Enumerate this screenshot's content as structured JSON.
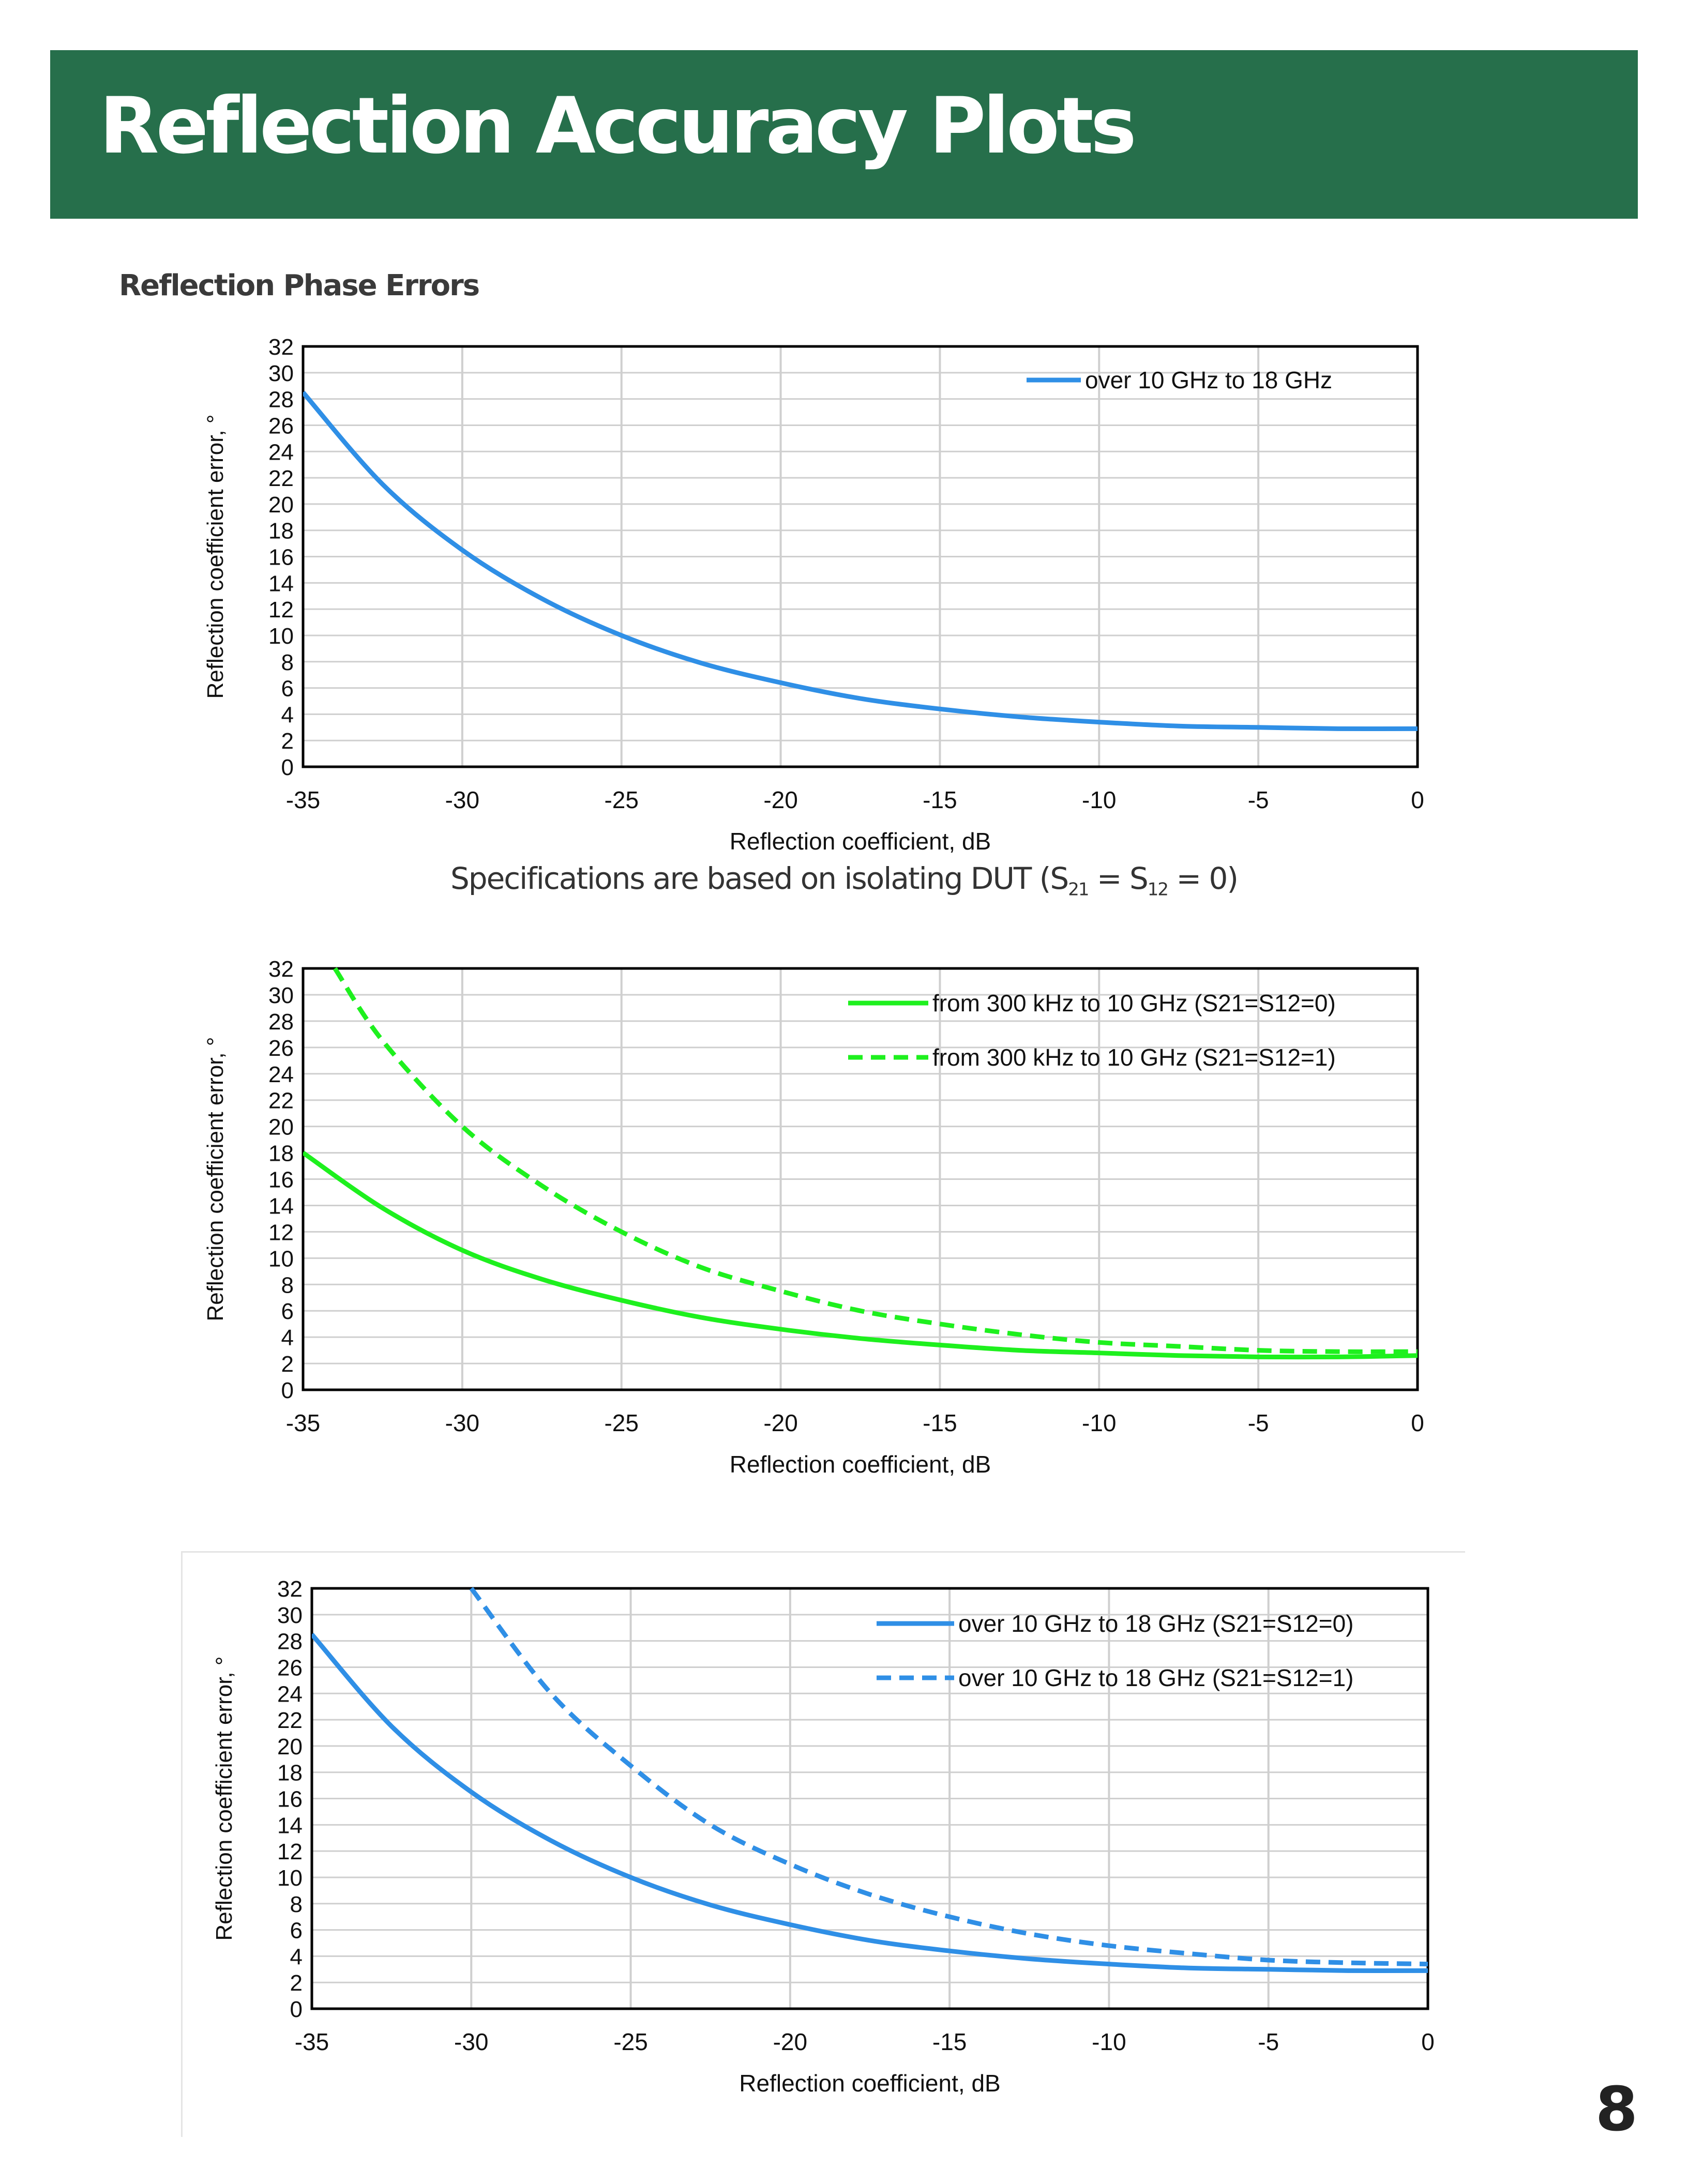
{
  "page": {
    "title": "Reflection Accuracy Plots",
    "section_title": "Reflection Phase Errors",
    "spec_note": {
      "text": "Specifications are based on isolating DUT (S",
      "sub1": "21",
      "mid": " = S",
      "sub2": "12",
      "end": " = 0)"
    },
    "page_number": "8"
  },
  "colors": {
    "header": "#266f4b",
    "blue": "#2f8fe6",
    "green": "#1ef01e"
  },
  "chart_data": [
    {
      "type": "line",
      "xlabel": "Reflection coefficient, dB",
      "ylabel": "Reflection coefficient error, °",
      "xlim": [
        -35,
        0
      ],
      "ylim": [
        0,
        32
      ],
      "xticks": [
        -35,
        -30,
        -25,
        -20,
        -15,
        -10,
        -5,
        0
      ],
      "yticks": [
        0,
        2,
        4,
        6,
        8,
        10,
        12,
        14,
        16,
        18,
        20,
        22,
        24,
        26,
        28,
        30,
        32
      ],
      "grid": true,
      "legend_position": "top-right",
      "series": [
        {
          "name": "over 10 GHz to 18 GHz",
          "color": "#2f8fe6",
          "dash": false,
          "x": [
            -35,
            -32.5,
            -30,
            -27.5,
            -25,
            -22.5,
            -20,
            -17.5,
            -15,
            -12.5,
            -10,
            -7.5,
            -5,
            -2.5,
            0
          ],
          "y": [
            28.5,
            21.5,
            16.5,
            12.8,
            10.0,
            7.9,
            6.4,
            5.2,
            4.4,
            3.8,
            3.4,
            3.1,
            3.0,
            2.9,
            2.9
          ]
        }
      ]
    },
    {
      "type": "line",
      "xlabel": "Reflection coefficient, dB",
      "ylabel": "Reflection coefficient error, °",
      "xlim": [
        -35,
        0
      ],
      "ylim": [
        0,
        32
      ],
      "xticks": [
        -35,
        -30,
        -25,
        -20,
        -15,
        -10,
        -5,
        0
      ],
      "yticks": [
        0,
        2,
        4,
        6,
        8,
        10,
        12,
        14,
        16,
        18,
        20,
        22,
        24,
        26,
        28,
        30,
        32
      ],
      "grid": true,
      "legend_position": "top-right",
      "series": [
        {
          "name": "from 300 kHz to 10 GHz (S21=S12=0)",
          "color": "#1ef01e",
          "dash": false,
          "x": [
            -35,
            -32.5,
            -30,
            -27.5,
            -25,
            -22.5,
            -20,
            -17.5,
            -15,
            -12.5,
            -10,
            -7.5,
            -5,
            -2.5,
            0
          ],
          "y": [
            18.0,
            13.8,
            10.6,
            8.4,
            6.8,
            5.5,
            4.6,
            3.9,
            3.4,
            3.0,
            2.8,
            2.6,
            2.5,
            2.5,
            2.6
          ]
        },
        {
          "name": "from 300 kHz to 10 GHz (S21=S12=1)",
          "color": "#1ef01e",
          "dash": true,
          "x": [
            -34,
            -32.5,
            -30,
            -27.5,
            -25,
            -22.5,
            -20,
            -17.5,
            -15,
            -12.5,
            -10,
            -7.5,
            -5,
            -2.5,
            0
          ],
          "y": [
            32.0,
            26.5,
            20.0,
            15.5,
            12.0,
            9.3,
            7.5,
            6.0,
            5.0,
            4.2,
            3.6,
            3.3,
            3.0,
            2.9,
            2.9
          ]
        }
      ]
    },
    {
      "type": "line",
      "xlabel": "Reflection coefficient, dB",
      "ylabel": "Reflection coefficient error, °",
      "xlim": [
        -35,
        0
      ],
      "ylim": [
        0,
        32
      ],
      "xticks": [
        -35,
        -30,
        -25,
        -20,
        -15,
        -10,
        -5,
        0
      ],
      "yticks": [
        0,
        2,
        4,
        6,
        8,
        10,
        12,
        14,
        16,
        18,
        20,
        22,
        24,
        26,
        28,
        30,
        32
      ],
      "grid": true,
      "legend_position": "top-right",
      "series": [
        {
          "name": "over 10 GHz to 18 GHz (S21=S12=0)",
          "color": "#2f8fe6",
          "dash": false,
          "x": [
            -35,
            -32.5,
            -30,
            -27.5,
            -25,
            -22.5,
            -20,
            -17.5,
            -15,
            -12.5,
            -10,
            -7.5,
            -5,
            -2.5,
            0
          ],
          "y": [
            28.5,
            21.5,
            16.5,
            12.8,
            10.0,
            7.9,
            6.4,
            5.2,
            4.4,
            3.8,
            3.4,
            3.1,
            3.0,
            2.9,
            2.9
          ]
        },
        {
          "name": "over 10 GHz to 18 GHz (S21=S12=1)",
          "color": "#2f8fe6",
          "dash": true,
          "x": [
            -30,
            -27.5,
            -25,
            -22.5,
            -20,
            -17.5,
            -15,
            -12.5,
            -10,
            -7.5,
            -5,
            -2.5,
            0
          ],
          "y": [
            32.0,
            24.0,
            18.5,
            14.0,
            11.0,
            8.7,
            7.0,
            5.7,
            4.8,
            4.2,
            3.7,
            3.5,
            3.4
          ]
        }
      ]
    }
  ]
}
